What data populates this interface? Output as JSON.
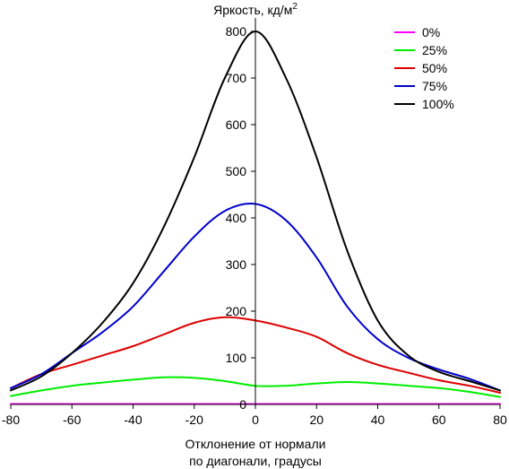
{
  "chart_data": {
    "type": "line",
    "title": "",
    "ylabel_base": "Яркость, кд/м",
    "ylabel_sup": "2",
    "xlabel_line1": "Отклонение от нормали",
    "xlabel_line2": "по диагонали, градусы",
    "xlim": [
      -80,
      80
    ],
    "ylim": [
      0,
      800
    ],
    "xticks": [
      -80,
      -60,
      -40,
      -20,
      0,
      20,
      40,
      60,
      80
    ],
    "yticks": [
      100,
      200,
      300,
      400,
      500,
      600,
      700,
      800
    ],
    "grid": false,
    "legend_position": "top-right",
    "x": [
      -80,
      -70,
      -60,
      -50,
      -40,
      -30,
      -20,
      -10,
      0,
      10,
      20,
      30,
      40,
      50,
      60,
      70,
      80
    ],
    "series": [
      {
        "name": "0%",
        "color": "#ff00ff",
        "values": [
          1,
          1,
          1,
          1,
          1,
          1,
          1,
          1,
          1,
          1,
          1,
          1,
          1,
          1,
          1,
          1,
          1
        ]
      },
      {
        "name": "25%",
        "color": "#00ee00",
        "values": [
          18,
          30,
          40,
          47,
          53,
          58,
          57,
          50,
          40,
          40,
          45,
          48,
          45,
          40,
          35,
          27,
          16
        ]
      },
      {
        "name": "50%",
        "color": "#dd0000",
        "values": [
          35,
          65,
          85,
          105,
          125,
          150,
          175,
          187,
          180,
          165,
          145,
          110,
          85,
          68,
          52,
          40,
          25
        ]
      },
      {
        "name": "75%",
        "color": "#0000cc",
        "values": [
          35,
          65,
          110,
          155,
          210,
          285,
          360,
          415,
          430,
          395,
          315,
          210,
          140,
          100,
          75,
          55,
          30
        ]
      },
      {
        "name": "100%",
        "color": "#000000",
        "values": [
          30,
          60,
          110,
          175,
          260,
          380,
          530,
          700,
          800,
          700,
          530,
          330,
          180,
          105,
          70,
          50,
          30
        ]
      }
    ]
  }
}
